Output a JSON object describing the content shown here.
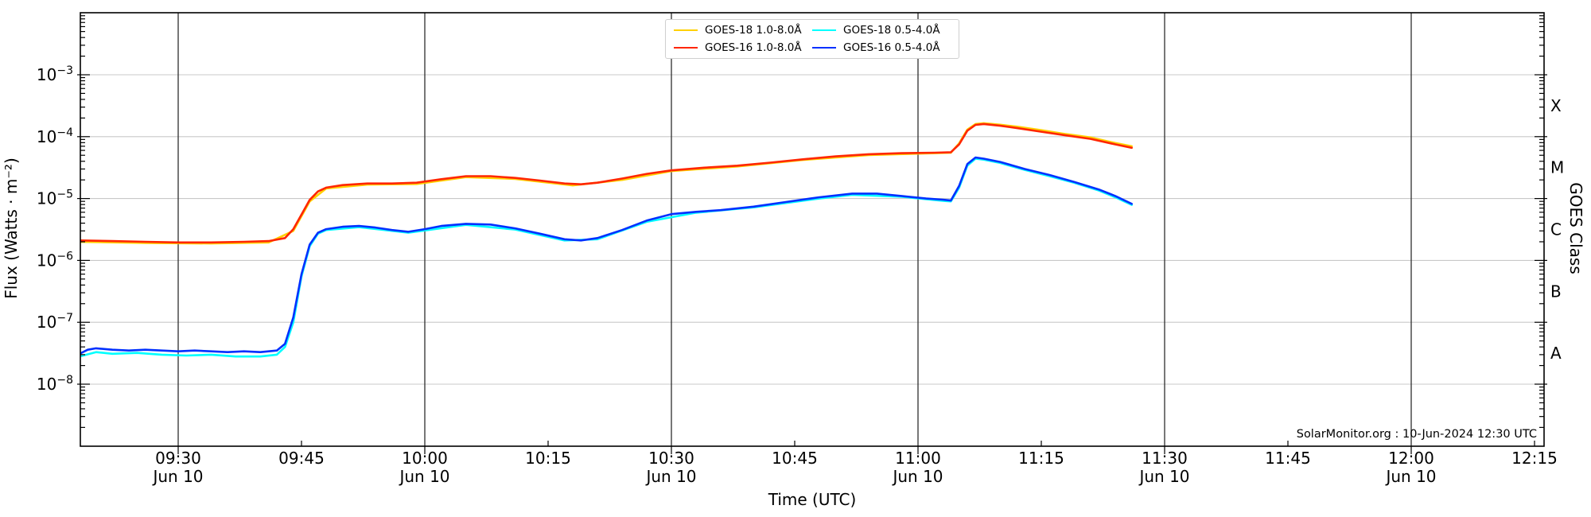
{
  "chart_data": {
    "type": "line",
    "title": "",
    "xlabel": "Time (UTC)",
    "ylabel": "Flux (Watts · m⁻²)",
    "ylabel_right": "GOES Class",
    "x_range": [
      "09:18",
      "12:16"
    ],
    "y_range": [
      1e-09,
      0.01
    ],
    "y_scale": "log",
    "grid": {
      "vertical_at": [
        "09:30",
        "10:00",
        "10:30",
        "11:00",
        "11:30",
        "12:00"
      ],
      "horizontal_at_exponents": [
        -3,
        -4,
        -5,
        -6,
        -7,
        -8
      ]
    },
    "x_ticks": [
      {
        "time": "09:30",
        "date": "Jun 10"
      },
      {
        "time": "09:45",
        "date": ""
      },
      {
        "time": "10:00",
        "date": "Jun 10"
      },
      {
        "time": "10:15",
        "date": ""
      },
      {
        "time": "10:30",
        "date": "Jun 10"
      },
      {
        "time": "10:45",
        "date": ""
      },
      {
        "time": "11:00",
        "date": "Jun 10"
      },
      {
        "time": "11:15",
        "date": ""
      },
      {
        "time": "11:30",
        "date": "Jun 10"
      },
      {
        "time": "11:45",
        "date": ""
      },
      {
        "time": "12:00",
        "date": "Jun 10"
      },
      {
        "time": "12:15",
        "date": ""
      }
    ],
    "y_tick_exponents": [
      -3,
      -4,
      -5,
      -6,
      -7,
      -8
    ],
    "goes_classes": [
      {
        "label": "X",
        "center_exponent": -3.5
      },
      {
        "label": "M",
        "center_exponent": -4.5
      },
      {
        "label": "C",
        "center_exponent": -5.5
      },
      {
        "label": "B",
        "center_exponent": -6.5
      },
      {
        "label": "A",
        "center_exponent": -7.5
      }
    ],
    "legend": {
      "position": "top-center",
      "items": [
        {
          "label": "GOES-18 1.0-8.0Å",
          "color": "#FFD100"
        },
        {
          "label": "GOES-16 1.0-8.0Å",
          "color": "#FF2600"
        },
        {
          "label": "GOES-18 0.5-4.0Å",
          "color": "#00FFFF"
        },
        {
          "label": "GOES-16 0.5-4.0Å",
          "color": "#0030FF"
        }
      ]
    },
    "annotation": "SolarMonitor.org : 10-Jun-2024 12:30 UTC",
    "series": [
      {
        "name": "GOES-18 1.0-8.0Å",
        "color": "#FFD100",
        "points": [
          [
            "09:18",
            2e-06
          ],
          [
            "09:26",
            1.92e-06
          ],
          [
            "09:34",
            1.88e-06
          ],
          [
            "09:41",
            1.95e-06
          ],
          [
            "09:44",
            3e-06
          ],
          [
            "09:46",
            9e-06
          ],
          [
            "09:48",
            1.45e-05
          ],
          [
            "09:53",
            1.68e-05
          ],
          [
            "09:59",
            1.72e-05
          ],
          [
            "10:05",
            2.22e-05
          ],
          [
            "10:11",
            2.08e-05
          ],
          [
            "10:18",
            1.63e-05
          ],
          [
            "10:24",
            2e-05
          ],
          [
            "10:30",
            2.78e-05
          ],
          [
            "10:38",
            3.3e-05
          ],
          [
            "10:46",
            4.2e-05
          ],
          [
            "10:54",
            5.05e-05
          ],
          [
            "11:02",
            5.4e-05
          ],
          [
            "11:04",
            5.5e-05
          ],
          [
            "11:05",
            7.8e-05
          ],
          [
            "11:06",
            0.00013
          ],
          [
            "11:07",
            0.00016
          ],
          [
            "11:08",
            0.000165
          ],
          [
            "11:10",
            0.000156
          ],
          [
            "11:12",
            0.000145
          ],
          [
            "11:15",
            0.000127
          ],
          [
            "11:18",
            0.00011
          ],
          [
            "11:21",
            9.7e-05
          ],
          [
            "11:24",
            7.9e-05
          ],
          [
            "11:26",
            7e-05
          ]
        ]
      },
      {
        "name": "GOES-18 0.5-4.0Å",
        "color": "#00FFFF",
        "points": [
          [
            "09:18",
            2.8e-08
          ],
          [
            "09:20",
            3.3e-08
          ],
          [
            "09:22",
            3.1e-08
          ],
          [
            "09:25",
            3.2e-08
          ],
          [
            "09:28",
            3e-08
          ],
          [
            "09:31",
            2.9e-08
          ],
          [
            "09:34",
            3e-08
          ],
          [
            "09:37",
            2.8e-08
          ],
          [
            "09:40",
            2.8e-08
          ],
          [
            "09:42",
            3e-08
          ],
          [
            "09:43",
            4e-08
          ],
          [
            "09:44",
            1e-07
          ],
          [
            "09:45",
            5.5e-07
          ],
          [
            "09:46",
            1.7e-06
          ],
          [
            "09:47",
            2.7e-06
          ],
          [
            "09:48",
            3.1e-06
          ],
          [
            "09:52",
            3.45e-06
          ],
          [
            "09:58",
            2.8e-06
          ],
          [
            "10:05",
            3.75e-06
          ],
          [
            "10:11",
            3.15e-06
          ],
          [
            "10:17",
            2.1e-06
          ],
          [
            "10:21",
            2.2e-06
          ],
          [
            "10:27",
            4.2e-06
          ],
          [
            "10:33",
            5.9e-06
          ],
          [
            "10:40",
            7.2e-06
          ],
          [
            "10:48",
            1e-05
          ],
          [
            "10:52",
            1.15e-05
          ],
          [
            "10:58",
            1.07e-05
          ],
          [
            "11:03",
            9.2e-06
          ],
          [
            "11:04",
            9e-06
          ],
          [
            "11:05",
            1.5e-05
          ],
          [
            "11:06",
            3.4e-05
          ],
          [
            "11:07",
            4.4e-05
          ],
          [
            "11:08",
            4.25e-05
          ],
          [
            "11:10",
            3.75e-05
          ],
          [
            "11:13",
            2.9e-05
          ],
          [
            "11:16",
            2.3e-05
          ],
          [
            "11:19",
            1.8e-05
          ],
          [
            "11:22",
            1.35e-05
          ],
          [
            "11:24",
            1.05e-05
          ],
          [
            "11:26",
            7.9e-06
          ]
        ]
      },
      {
        "name": "GOES-16 1.0-8.0Å",
        "color": "#FF2600",
        "points": [
          [
            "09:18",
            2.1e-06
          ],
          [
            "09:22",
            2.05e-06
          ],
          [
            "09:26",
            2e-06
          ],
          [
            "09:30",
            1.95e-06
          ],
          [
            "09:34",
            1.95e-06
          ],
          [
            "09:38",
            2e-06
          ],
          [
            "09:41",
            2.05e-06
          ],
          [
            "09:43",
            2.3e-06
          ],
          [
            "09:44",
            3.2e-06
          ],
          [
            "09:45",
            5.5e-06
          ],
          [
            "09:46",
            9.5e-06
          ],
          [
            "09:47",
            1.3e-05
          ],
          [
            "09:48",
            1.5e-05
          ],
          [
            "09:50",
            1.65e-05
          ],
          [
            "09:53",
            1.75e-05
          ],
          [
            "09:56",
            1.75e-05
          ],
          [
            "09:59",
            1.8e-05
          ],
          [
            "10:02",
            2.05e-05
          ],
          [
            "10:05",
            2.3e-05
          ],
          [
            "10:08",
            2.3e-05
          ],
          [
            "10:11",
            2.15e-05
          ],
          [
            "10:14",
            1.95e-05
          ],
          [
            "10:17",
            1.75e-05
          ],
          [
            "10:19",
            1.7e-05
          ],
          [
            "10:21",
            1.8e-05
          ],
          [
            "10:24",
            2.1e-05
          ],
          [
            "10:27",
            2.5e-05
          ],
          [
            "10:30",
            2.85e-05
          ],
          [
            "10:34",
            3.15e-05
          ],
          [
            "10:38",
            3.4e-05
          ],
          [
            "10:42",
            3.8e-05
          ],
          [
            "10:46",
            4.3e-05
          ],
          [
            "10:50",
            4.8e-05
          ],
          [
            "10:54",
            5.2e-05
          ],
          [
            "10:58",
            5.4e-05
          ],
          [
            "11:02",
            5.5e-05
          ],
          [
            "11:04",
            5.6e-05
          ],
          [
            "11:05",
            7.5e-05
          ],
          [
            "11:06",
            0.000125
          ],
          [
            "11:07",
            0.000155
          ],
          [
            "11:08",
            0.00016
          ],
          [
            "11:10",
            0.00015
          ],
          [
            "11:12",
            0.000138
          ],
          [
            "11:15",
            0.00012
          ],
          [
            "11:18",
            0.000105
          ],
          [
            "11:21",
            9.2e-05
          ],
          [
            "11:24",
            7.5e-05
          ],
          [
            "11:26",
            6.6e-05
          ]
        ]
      },
      {
        "name": "GOES-16 0.5-4.0Å",
        "color": "#0030FF",
        "points": [
          [
            "09:18",
            3.1e-08
          ],
          [
            "09:19",
            3.6e-08
          ],
          [
            "09:20",
            3.8e-08
          ],
          [
            "09:22",
            3.6e-08
          ],
          [
            "09:24",
            3.5e-08
          ],
          [
            "09:26",
            3.6e-08
          ],
          [
            "09:28",
            3.5e-08
          ],
          [
            "09:30",
            3.4e-08
          ],
          [
            "09:32",
            3.5e-08
          ],
          [
            "09:34",
            3.4e-08
          ],
          [
            "09:36",
            3.3e-08
          ],
          [
            "09:38",
            3.4e-08
          ],
          [
            "09:40",
            3.3e-08
          ],
          [
            "09:42",
            3.5e-08
          ],
          [
            "09:43",
            4.5e-08
          ],
          [
            "09:44",
            1.2e-07
          ],
          [
            "09:45",
            6e-07
          ],
          [
            "09:46",
            1.8e-06
          ],
          [
            "09:47",
            2.8e-06
          ],
          [
            "09:48",
            3.2e-06
          ],
          [
            "09:50",
            3.5e-06
          ],
          [
            "09:52",
            3.6e-06
          ],
          [
            "09:54",
            3.4e-06
          ],
          [
            "09:56",
            3.1e-06
          ],
          [
            "09:58",
            2.9e-06
          ],
          [
            "10:00",
            3.2e-06
          ],
          [
            "10:02",
            3.6e-06
          ],
          [
            "10:05",
            3.9e-06
          ],
          [
            "10:08",
            3.8e-06
          ],
          [
            "10:11",
            3.3e-06
          ],
          [
            "10:14",
            2.7e-06
          ],
          [
            "10:17",
            2.2e-06
          ],
          [
            "10:19",
            2.1e-06
          ],
          [
            "10:21",
            2.3e-06
          ],
          [
            "10:24",
            3.1e-06
          ],
          [
            "10:27",
            4.4e-06
          ],
          [
            "10:30",
            5.6e-06
          ],
          [
            "10:33",
            6.1e-06
          ],
          [
            "10:36",
            6.5e-06
          ],
          [
            "10:40",
            7.4e-06
          ],
          [
            "10:44",
            8.8e-06
          ],
          [
            "10:48",
            1.05e-05
          ],
          [
            "10:52",
            1.2e-05
          ],
          [
            "10:55",
            1.2e-05
          ],
          [
            "10:58",
            1.1e-05
          ],
          [
            "11:01",
            1e-05
          ],
          [
            "11:03",
            9.6e-06
          ],
          [
            "11:04",
            9.3e-06
          ],
          [
            "11:05",
            1.6e-05
          ],
          [
            "11:06",
            3.6e-05
          ],
          [
            "11:07",
            4.6e-05
          ],
          [
            "11:08",
            4.4e-05
          ],
          [
            "11:10",
            3.9e-05
          ],
          [
            "11:13",
            3e-05
          ],
          [
            "11:16",
            2.4e-05
          ],
          [
            "11:19",
            1.85e-05
          ],
          [
            "11:22",
            1.4e-05
          ],
          [
            "11:24",
            1.1e-05
          ],
          [
            "11:26",
            8.2e-06
          ]
        ]
      }
    ]
  }
}
